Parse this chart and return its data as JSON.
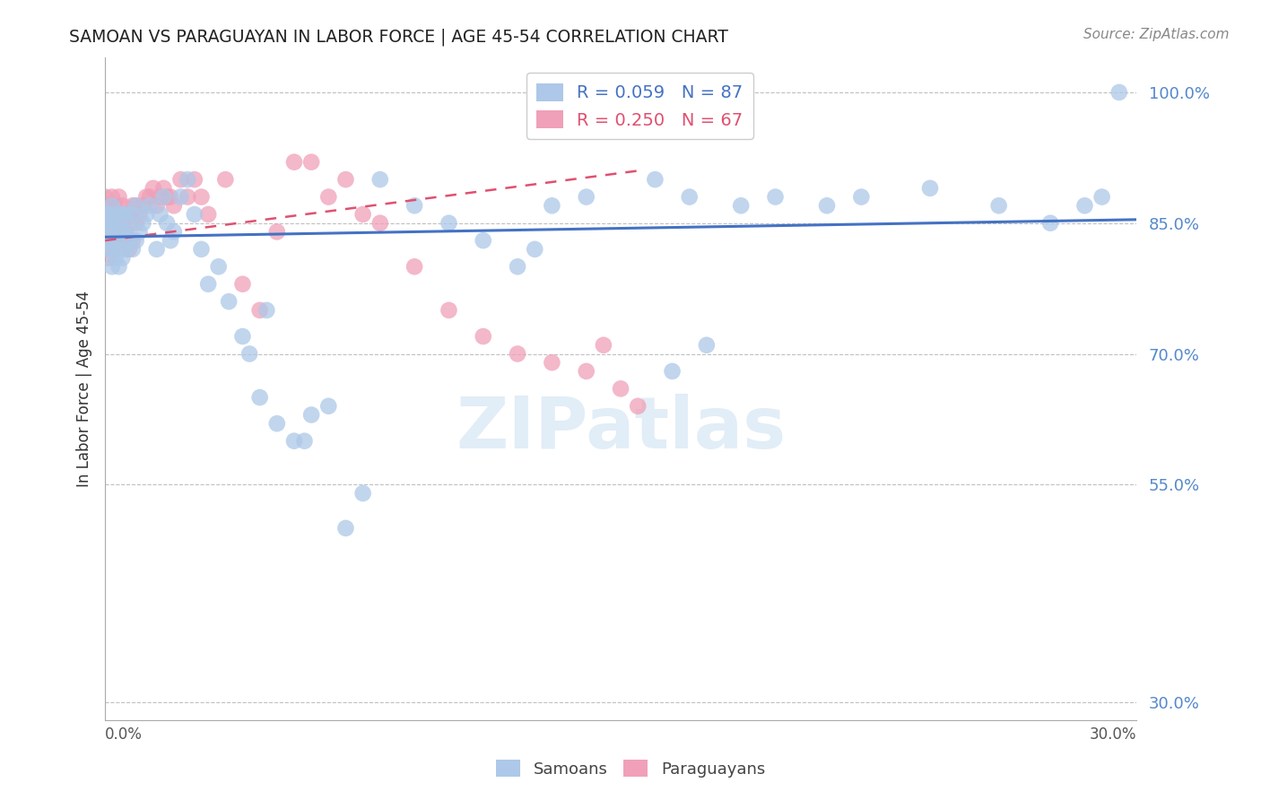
{
  "title": "SAMOAN VS PARAGUAYAN IN LABOR FORCE | AGE 45-54 CORRELATION CHART",
  "source": "Source: ZipAtlas.com",
  "ylabel": "In Labor Force | Age 45-54",
  "y_ticks": [
    0.3,
    0.55,
    0.7,
    0.85,
    1.0
  ],
  "y_tick_labels": [
    "30.0%",
    "55.0%",
    "70.0%",
    "85.0%",
    "100.0%"
  ],
  "xlim": [
    0.0,
    0.3
  ],
  "ylim": [
    0.28,
    1.04
  ],
  "samoans_R": 0.059,
  "samoans_N": 87,
  "paraguayans_R": 0.25,
  "paraguayans_N": 67,
  "samoan_color": "#adc8e8",
  "paraguayan_color": "#f0a0b8",
  "trendline_samoan_color": "#4472c4",
  "trendline_paraguayan_color": "#e05070",
  "background_color": "#ffffff",
  "grid_color": "#c0c0c0",
  "tick_label_color": "#5588cc",
  "samoans_x": [
    0.0,
    0.0,
    0.0,
    0.0,
    0.0,
    0.001,
    0.001,
    0.001,
    0.001,
    0.001,
    0.002,
    0.002,
    0.002,
    0.002,
    0.002,
    0.003,
    0.003,
    0.003,
    0.003,
    0.004,
    0.004,
    0.004,
    0.004,
    0.005,
    0.005,
    0.005,
    0.006,
    0.006,
    0.006,
    0.007,
    0.007,
    0.008,
    0.008,
    0.009,
    0.009,
    0.01,
    0.011,
    0.012,
    0.013,
    0.015,
    0.016,
    0.017,
    0.018,
    0.019,
    0.02,
    0.022,
    0.024,
    0.026,
    0.028,
    0.03,
    0.033,
    0.036,
    0.04,
    0.045,
    0.05,
    0.06,
    0.065,
    0.08,
    0.09,
    0.1,
    0.11,
    0.13,
    0.14,
    0.16,
    0.17,
    0.185,
    0.195,
    0.21,
    0.22,
    0.24,
    0.26,
    0.275,
    0.285,
    0.29,
    0.295,
    0.165,
    0.175,
    0.12,
    0.125,
    0.07,
    0.075,
    0.055,
    0.058,
    0.042,
    0.047
  ],
  "samoans_y": [
    0.84,
    0.85,
    0.85,
    0.86,
    0.86,
    0.82,
    0.83,
    0.84,
    0.85,
    0.86,
    0.8,
    0.82,
    0.84,
    0.85,
    0.87,
    0.81,
    0.83,
    0.85,
    0.86,
    0.8,
    0.82,
    0.84,
    0.86,
    0.81,
    0.84,
    0.86,
    0.82,
    0.84,
    0.86,
    0.83,
    0.85,
    0.82,
    0.86,
    0.83,
    0.87,
    0.84,
    0.85,
    0.86,
    0.87,
    0.82,
    0.86,
    0.88,
    0.85,
    0.83,
    0.84,
    0.88,
    0.9,
    0.86,
    0.82,
    0.78,
    0.8,
    0.76,
    0.72,
    0.65,
    0.62,
    0.63,
    0.64,
    0.9,
    0.87,
    0.85,
    0.83,
    0.87,
    0.88,
    0.9,
    0.88,
    0.87,
    0.88,
    0.87,
    0.88,
    0.89,
    0.87,
    0.85,
    0.87,
    0.88,
    1.0,
    0.68,
    0.71,
    0.8,
    0.82,
    0.5,
    0.54,
    0.6,
    0.6,
    0.7,
    0.75
  ],
  "paraguayans_x": [
    0.0,
    0.0,
    0.0,
    0.0,
    0.0,
    0.0,
    0.001,
    0.001,
    0.001,
    0.001,
    0.001,
    0.002,
    0.002,
    0.002,
    0.002,
    0.003,
    0.003,
    0.003,
    0.004,
    0.004,
    0.004,
    0.005,
    0.005,
    0.005,
    0.006,
    0.006,
    0.007,
    0.007,
    0.008,
    0.008,
    0.009,
    0.009,
    0.01,
    0.011,
    0.012,
    0.013,
    0.014,
    0.015,
    0.016,
    0.017,
    0.018,
    0.019,
    0.02,
    0.022,
    0.024,
    0.026,
    0.028,
    0.03,
    0.035,
    0.04,
    0.045,
    0.05,
    0.055,
    0.06,
    0.065,
    0.07,
    0.075,
    0.08,
    0.09,
    0.1,
    0.11,
    0.12,
    0.13,
    0.14,
    0.145,
    0.15,
    0.155
  ],
  "paraguayans_y": [
    0.83,
    0.84,
    0.85,
    0.86,
    0.87,
    0.88,
    0.81,
    0.83,
    0.84,
    0.85,
    0.87,
    0.82,
    0.84,
    0.86,
    0.88,
    0.83,
    0.85,
    0.87,
    0.84,
    0.86,
    0.88,
    0.83,
    0.85,
    0.87,
    0.84,
    0.86,
    0.82,
    0.86,
    0.83,
    0.87,
    0.85,
    0.87,
    0.86,
    0.87,
    0.88,
    0.88,
    0.89,
    0.87,
    0.88,
    0.89,
    0.88,
    0.88,
    0.87,
    0.9,
    0.88,
    0.9,
    0.88,
    0.86,
    0.9,
    0.78,
    0.75,
    0.84,
    0.92,
    0.92,
    0.88,
    0.9,
    0.86,
    0.85,
    0.8,
    0.75,
    0.72,
    0.7,
    0.69,
    0.68,
    0.71,
    0.66,
    0.64
  ],
  "sam_trend_x": [
    0.0,
    0.3
  ],
  "sam_trend_y": [
    0.834,
    0.854
  ],
  "par_trend_x": [
    0.0,
    0.155
  ],
  "par_trend_y": [
    0.83,
    0.91
  ]
}
